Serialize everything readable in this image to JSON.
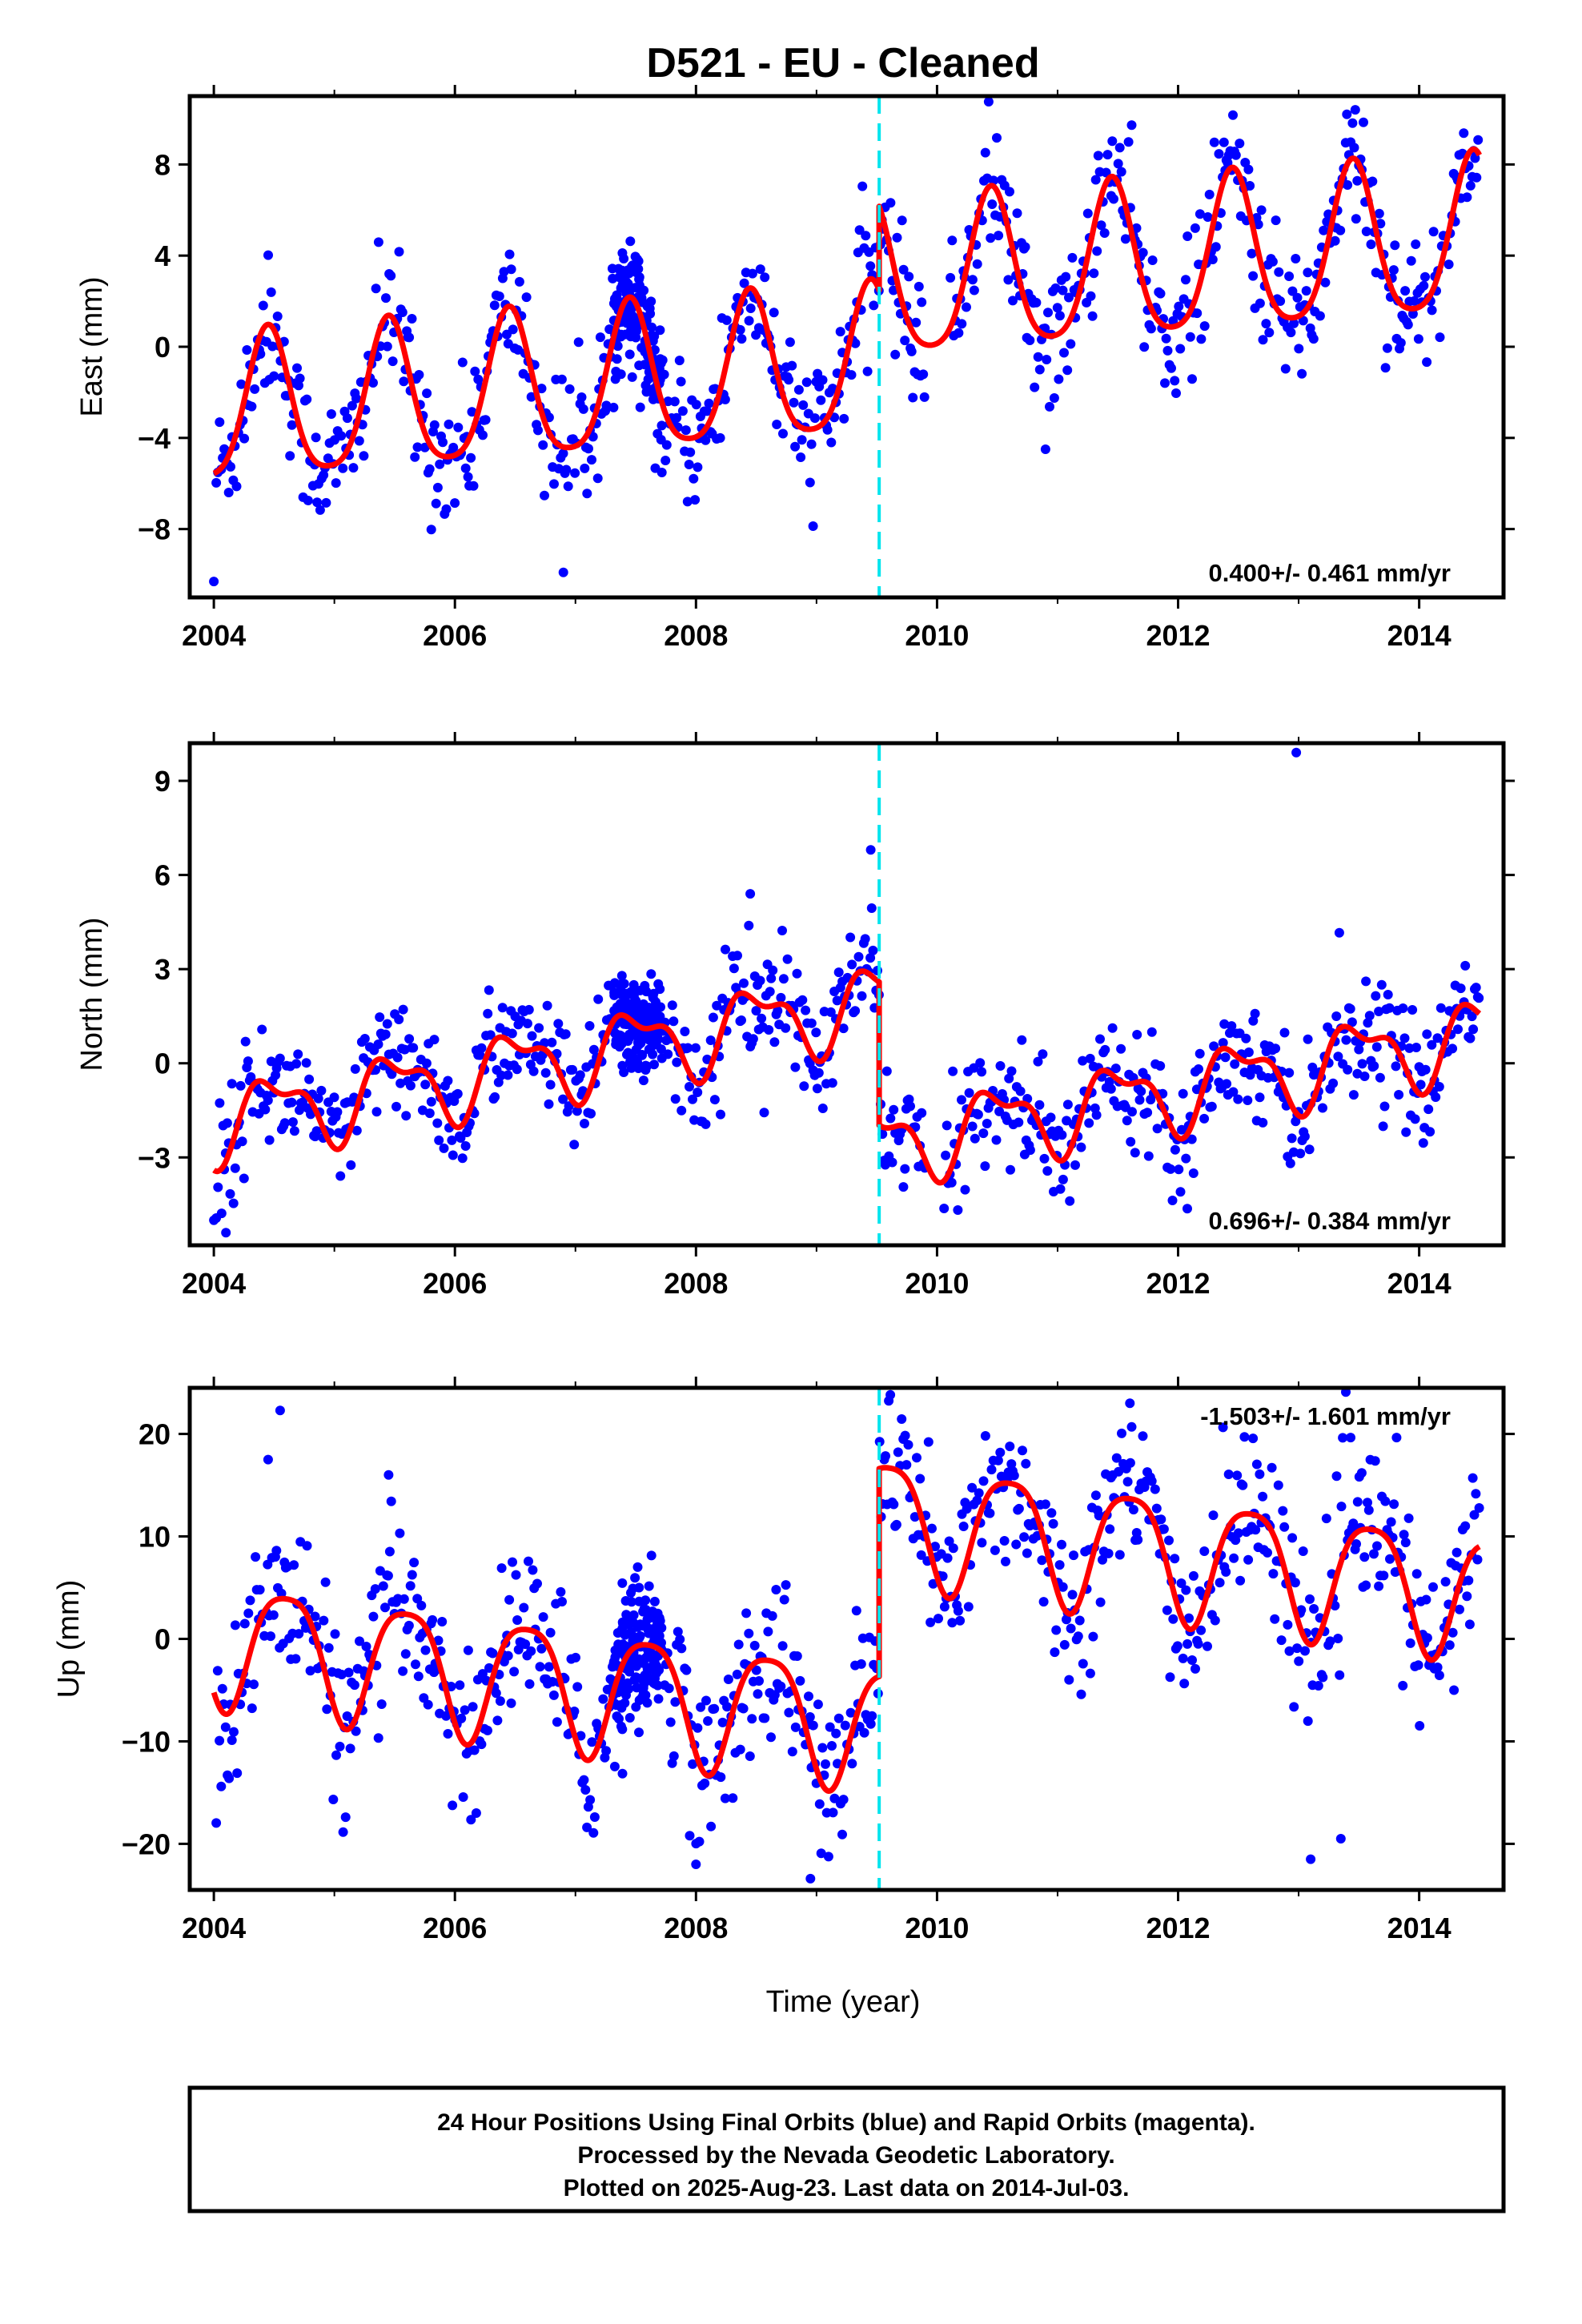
{
  "figure": {
    "title": "D521  - EU - Cleaned",
    "xlabel": "Time (year)",
    "footer": [
      "24 Hour Positions Using Final Orbits (blue) and Rapid Orbits (magenta).",
      "Processed by the Nevada Geodetic Laboratory.",
      "Plotted on 2025-Aug-23. Last data on 2014-Jul-03."
    ]
  },
  "colors": {
    "points": "#0000ff",
    "model": "#ff0000",
    "break_line": "#00e5ee",
    "frame": "#000000"
  },
  "chart_data": [
    {
      "type": "scatter",
      "panel": "east",
      "ylabel": "East (mm)",
      "rate_text": "0.400+/- 0.461 mm/yr",
      "xlim": [
        2003.8,
        2014.7
      ],
      "ylim": [
        -11,
        11
      ],
      "xticks": [
        2004,
        2006,
        2008,
        2010,
        2012,
        2014
      ],
      "yticks": [
        -8,
        -4,
        0,
        4,
        8
      ],
      "ytick_labels": [
        "−8",
        "−4",
        "0",
        "4",
        "8"
      ],
      "break_epoch": 2009.52,
      "model": {
        "before": {
          "offset": -3.0,
          "trend": 0.4,
          "annual_amp": 3.2,
          "annual_peak": 0.45,
          "semi_amp": 0.6,
          "semi_peak": 0.45,
          "t0": 2004.0,
          "t1": 2009.52
        },
        "after": {
          "offset": 2.7,
          "trend": 0.4,
          "annual_amp": 3.4,
          "annual_peak": 0.45,
          "semi_amp": 0.6,
          "semi_peak": 0.45,
          "t0": 2009.52,
          "t1": 2014.5
        }
      },
      "scatter": {
        "sigma": 1.5,
        "outliers": [
          [
            2004.0,
            -10.3
          ],
          [
            2006.9,
            -9.9
          ],
          [
            2013.4,
            10.2
          ],
          [
            2013.47,
            10.4
          ],
          [
            2010.9,
            -4.5
          ]
        ],
        "cluster": [
          2007.3,
          2007.7
        ],
        "gaps": [
          [
            2009.9,
            2010.1
          ]
        ]
      }
    },
    {
      "type": "scatter",
      "panel": "north",
      "ylabel": "North (mm)",
      "rate_text": "0.696+/- 0.384 mm/yr",
      "xlim": [
        2003.8,
        2014.7
      ],
      "ylim": [
        -5.8,
        10.2
      ],
      "xticks": [
        2004,
        2006,
        2008,
        2010,
        2012,
        2014
      ],
      "yticks": [
        -3,
        0,
        3,
        6,
        9
      ],
      "ytick_labels": [
        "−3",
        "0",
        "3",
        "6",
        "9"
      ],
      "break_epoch": 2009.52,
      "model": {
        "before": {
          "offset": -1.9,
          "trend": 0.7,
          "annual_amp": 1.1,
          "annual_peak": 0.5,
          "semi_amp": 0.5,
          "semi_peak": 0.3,
          "t0": 2004.0,
          "t1": 2009.52
        },
        "after": {
          "offset": -2.6,
          "trend": 0.7,
          "annual_amp": 1.1,
          "annual_peak": 0.5,
          "semi_amp": 0.5,
          "semi_peak": 0.3,
          "t0": 2009.52,
          "t1": 2014.5
        }
      },
      "scatter": {
        "sigma": 0.9,
        "outliers": [
          [
            2012.98,
            9.9
          ],
          [
            2009.45,
            6.8
          ],
          [
            2008.45,
            5.4
          ],
          [
            2004.0,
            -5.0
          ],
          [
            2004.1,
            -5.4
          ]
        ],
        "cluster": [
          2007.3,
          2007.7
        ],
        "gaps": [
          [
            2009.9,
            2010.05
          ]
        ]
      }
    },
    {
      "type": "scatter",
      "panel": "up",
      "ylabel": "Up (mm)",
      "rate_text": "-1.503+/- 1.601 mm/yr",
      "xlim": [
        2003.8,
        2014.7
      ],
      "ylim": [
        -24.5,
        24.5
      ],
      "xticks": [
        2004,
        2006,
        2008,
        2010,
        2012,
        2014
      ],
      "yticks": [
        -20,
        -10,
        0,
        10,
        20
      ],
      "ytick_labels": [
        "−20",
        "−10",
        "0",
        "10",
        "20"
      ],
      "break_epoch": 2009.52,
      "model": {
        "before": {
          "offset": 0.0,
          "trend": -1.5,
          "annual_amp": 6.0,
          "annual_peak": 0.6,
          "semi_amp": 1.2,
          "semi_peak": 0.35,
          "t0": 2004.0,
          "t1": 2009.52
        },
        "after": {
          "offset": 12.0,
          "trend": -1.5,
          "annual_amp": 6.0,
          "annual_peak": 0.6,
          "semi_amp": 1.2,
          "semi_peak": 0.35,
          "t0": 2009.52,
          "t1": 2014.5
        }
      },
      "scatter": {
        "sigma": 4.0,
        "outliers": [
          [
            2004.55,
            22.3
          ],
          [
            2011.6,
            23.0
          ],
          [
            2008.0,
            -22.0
          ],
          [
            2008.95,
            -23.4
          ],
          [
            2013.1,
            -21.5
          ],
          [
            2013.35,
            -19.5
          ],
          [
            2004.45,
            17.5
          ],
          [
            2005.45,
            16.0
          ]
        ],
        "cluster": [
          2007.3,
          2007.7
        ],
        "gaps": []
      }
    }
  ]
}
